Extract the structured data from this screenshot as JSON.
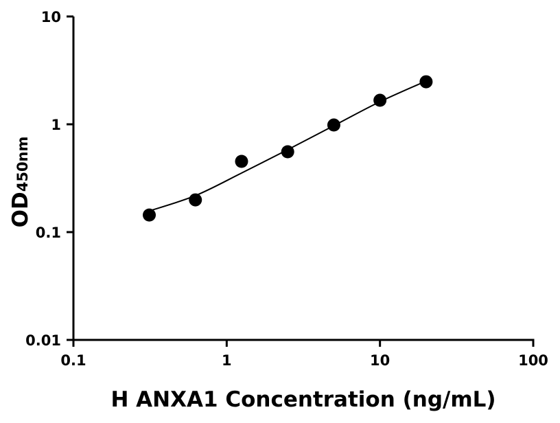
{
  "chart_data": {
    "type": "scatter",
    "title": "",
    "xlabel": "H ANXA1 Concentration (ng/mL)",
    "ylabel": "OD",
    "ylabel_subscript": "450nm",
    "x_scale": "log",
    "y_scale": "log",
    "xlim": [
      0.1,
      100
    ],
    "ylim": [
      0.01,
      10
    ],
    "x_ticks": [
      0.1,
      1,
      10,
      100
    ],
    "x_tick_labels": [
      "0.1",
      "1",
      "10",
      "100"
    ],
    "y_ticks": [
      0.01,
      0.1,
      1,
      10
    ],
    "y_tick_labels": [
      "0.01",
      "0.1",
      "1",
      "10"
    ],
    "grid": false,
    "legend": "none",
    "colors": {
      "points": "#000000",
      "curve": "#000000"
    },
    "points": {
      "x": [
        0.3125,
        0.625,
        1.25,
        2.5,
        5,
        10,
        20
      ],
      "y": [
        0.144,
        0.199,
        0.453,
        0.556,
        0.985,
        1.67,
        2.48
      ]
    },
    "fit_curve": {
      "x": [
        0.3125,
        0.625,
        1.25,
        2.5,
        5,
        10,
        20
      ],
      "y": [
        0.157,
        0.218,
        0.353,
        0.581,
        0.971,
        1.62,
        2.52
      ]
    }
  }
}
